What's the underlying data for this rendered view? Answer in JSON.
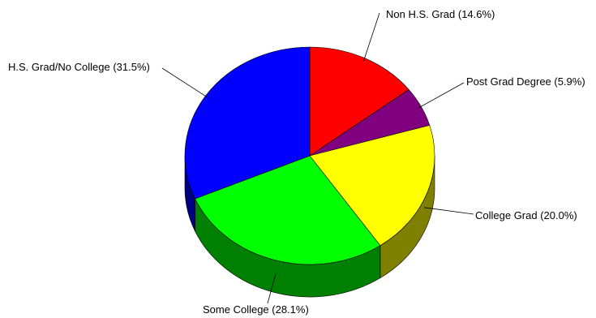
{
  "chart_data": {
    "type": "pie",
    "style": "3d-pie",
    "slices": [
      {
        "label": "Non H.S. Grad (14.6%)",
        "value": 14.6,
        "color": "#ff0000",
        "side_color": "#bf0000"
      },
      {
        "label": "Post Grad Degree (5.9%)",
        "value": 5.9,
        "color": "#800080",
        "side_color": "#5a005a"
      },
      {
        "label": "College Grad (20.0%)",
        "value": 20.0,
        "color": "#ffff00",
        "side_color": "#808000"
      },
      {
        "label": "Some College (28.1%)",
        "value": 28.1,
        "color": "#00ff00",
        "side_color": "#008000"
      },
      {
        "label": "H.S. Grad/No College (31.5%)",
        "value": 31.5,
        "color": "#0000ff",
        "side_color": "#000080"
      }
    ],
    "start": "top",
    "direction": "clockwise"
  }
}
